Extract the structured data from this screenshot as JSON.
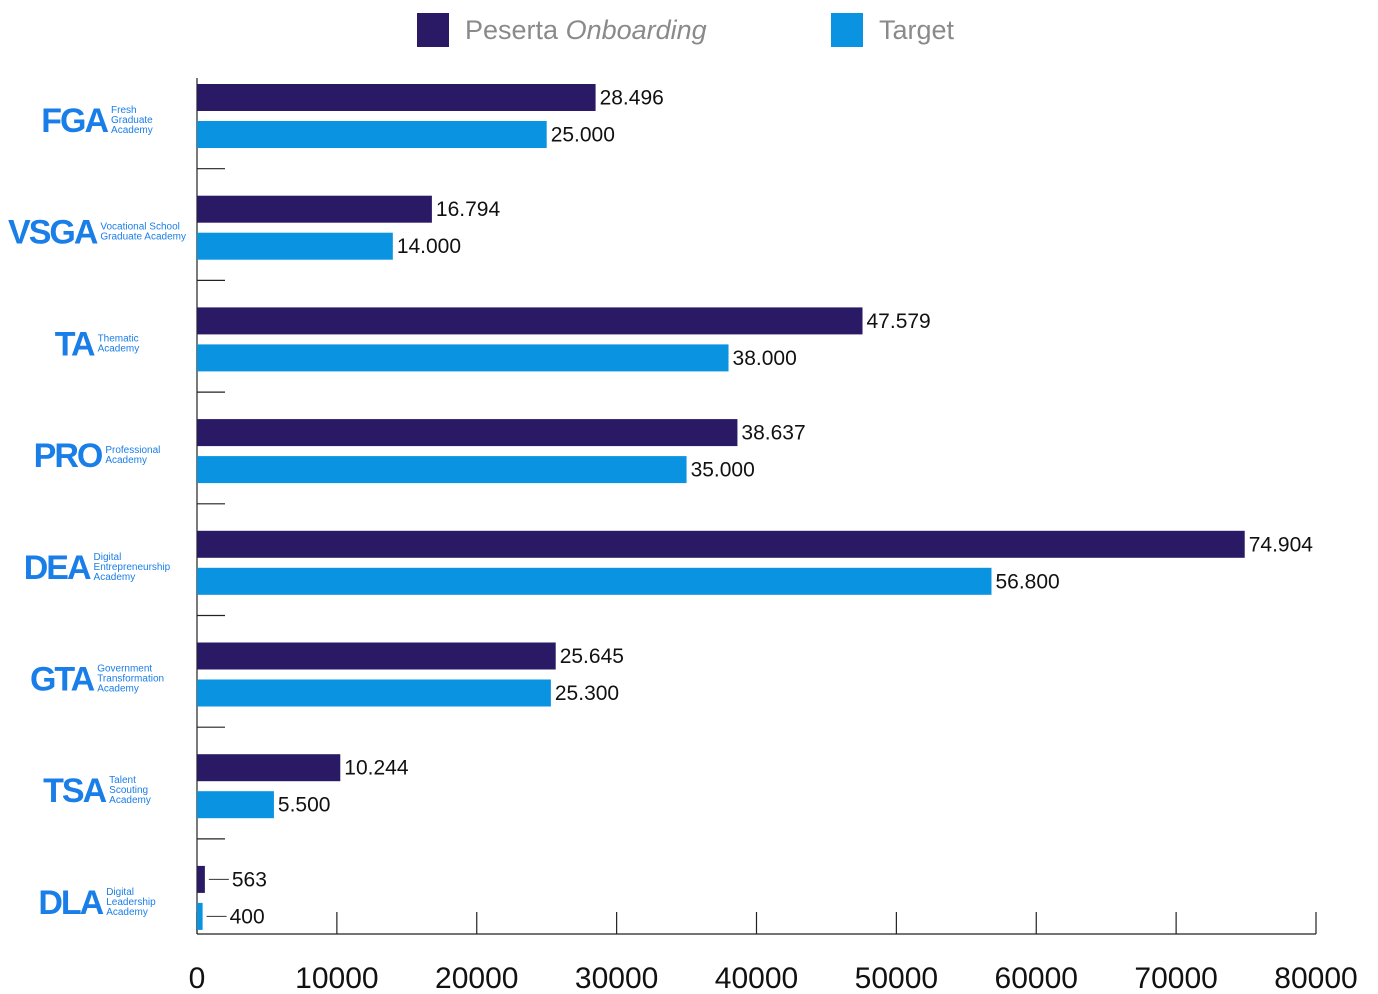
{
  "chart_data": {
    "type": "bar",
    "orientation": "horizontal",
    "categories": [
      {
        "abbr": "FGA",
        "name": "Fresh Graduate Academy",
        "name_lines": [
          "Fresh",
          "Graduate",
          "Academy"
        ]
      },
      {
        "abbr": "VSGA",
        "name": "Vocational School Graduate Academy",
        "name_lines": [
          "Vocational School",
          "Graduate Academy"
        ]
      },
      {
        "abbr": "TA",
        "name": "Thematic Academy",
        "name_lines": [
          "Thematic",
          "Academy"
        ]
      },
      {
        "abbr": "PRO",
        "name": "Professional Academy",
        "name_lines": [
          "Professional",
          "Academy"
        ]
      },
      {
        "abbr": "DEA",
        "name": "Digital Entrepreneurship Academy",
        "name_lines": [
          "Digital",
          "Entrepreneurship",
          "Academy"
        ]
      },
      {
        "abbr": "GTA",
        "name": "Government Transformation Academy",
        "name_lines": [
          "Government",
          "Transformation",
          "Academy"
        ]
      },
      {
        "abbr": "TSA",
        "name": "Talent Scouting Academy",
        "name_lines": [
          "Talent",
          "Scouting",
          "Academy"
        ]
      },
      {
        "abbr": "DLA",
        "name": "Digital Leadership Academy",
        "name_lines": [
          "Digital",
          "Leadership",
          "Academy"
        ]
      }
    ],
    "series": [
      {
        "name_plain": "Peserta ",
        "name_italic": "Onboarding",
        "color": "#2a1a66",
        "values": [
          28496,
          16794,
          47579,
          38637,
          74904,
          25645,
          10244,
          563
        ],
        "labels": [
          "28.496",
          "16.794",
          "47.579",
          "38.637",
          "74.904",
          "25.645",
          "10.244",
          "563"
        ]
      },
      {
        "name_plain": "Target",
        "name_italic": "",
        "color": "#0993e0",
        "values": [
          25000,
          14000,
          38000,
          35000,
          56800,
          25300,
          5500,
          400
        ],
        "labels": [
          "25.000",
          "14.000",
          "38.000",
          "35.000",
          "56.800",
          "25.300",
          "5.500",
          "400"
        ]
      }
    ],
    "xlim": [
      0,
      80000
    ],
    "xticks": [
      0,
      10000,
      20000,
      30000,
      40000,
      50000,
      60000,
      70000,
      80000
    ],
    "category_label_color": "#1a7ee8",
    "legend_position": "top",
    "grid": false
  }
}
